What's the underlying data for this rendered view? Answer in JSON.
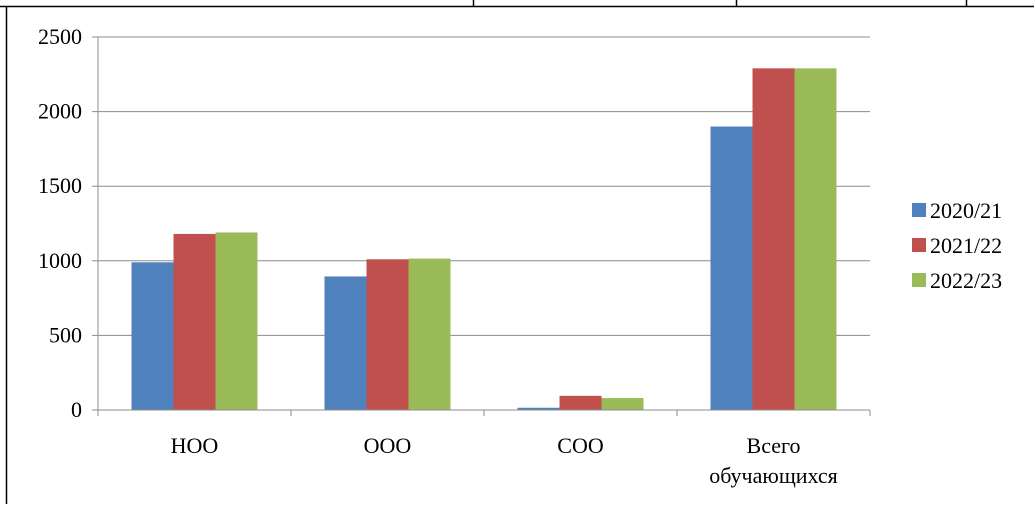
{
  "chart_data": {
    "type": "bar",
    "title": "",
    "xlabel": "",
    "ylabel": "",
    "categories": [
      "НОО",
      "ООО",
      "СОО",
      [
        "Всего",
        "обучающихся"
      ]
    ],
    "series": [
      {
        "name": "2020/21",
        "color": "#4f81bd",
        "values": [
          990,
          895,
          15,
          1900
        ]
      },
      {
        "name": "2021/22",
        "color": "#c0504d",
        "values": [
          1180,
          1010,
          95,
          2290
        ]
      },
      {
        "name": "2022/23",
        "color": "#9bbb59",
        "values": [
          1190,
          1015,
          80,
          2290
        ]
      }
    ],
    "ylim": [
      0,
      2500
    ],
    "yticks": [
      0,
      500,
      1000,
      1500,
      2000,
      2500
    ],
    "grid": true,
    "legend": "right"
  }
}
